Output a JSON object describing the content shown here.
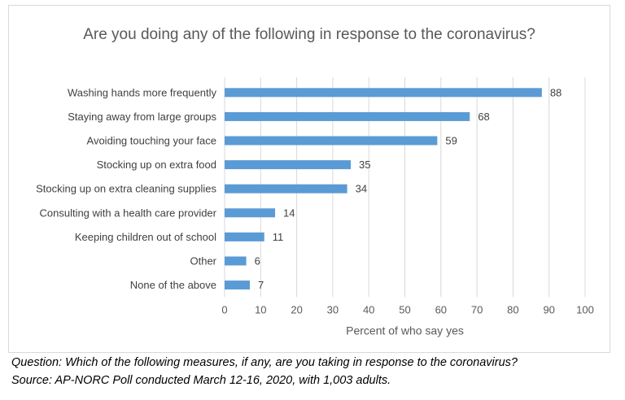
{
  "chart_data": {
    "type": "bar",
    "orientation": "horizontal",
    "title": "Are you doing any of the following in response to the coronavirus?",
    "xlabel": "Percent of who say yes",
    "ylabel": "",
    "xlim": [
      0,
      100
    ],
    "xticks": [
      0,
      10,
      20,
      30,
      40,
      50,
      60,
      70,
      80,
      90,
      100
    ],
    "grid": "vertical",
    "categories": [
      "Washing hands more frequently",
      "Staying away from large groups",
      "Avoiding touching your face",
      "Stocking up on extra food",
      "Stocking up on extra cleaning supplies",
      "Consulting with a health care provider",
      "Keeping children out of school",
      "Other",
      "None of the above"
    ],
    "values": [
      88,
      68,
      59,
      35,
      34,
      14,
      11,
      6,
      7
    ],
    "bar_color": "#5b9bd5",
    "data_labels": true
  },
  "captions": {
    "question": "Question: Which of the following measures, if any, are you taking in response to the coronavirus?",
    "source": "Source: AP-NORC Poll conducted March 12-16, 2020, with 1,003 adults."
  }
}
